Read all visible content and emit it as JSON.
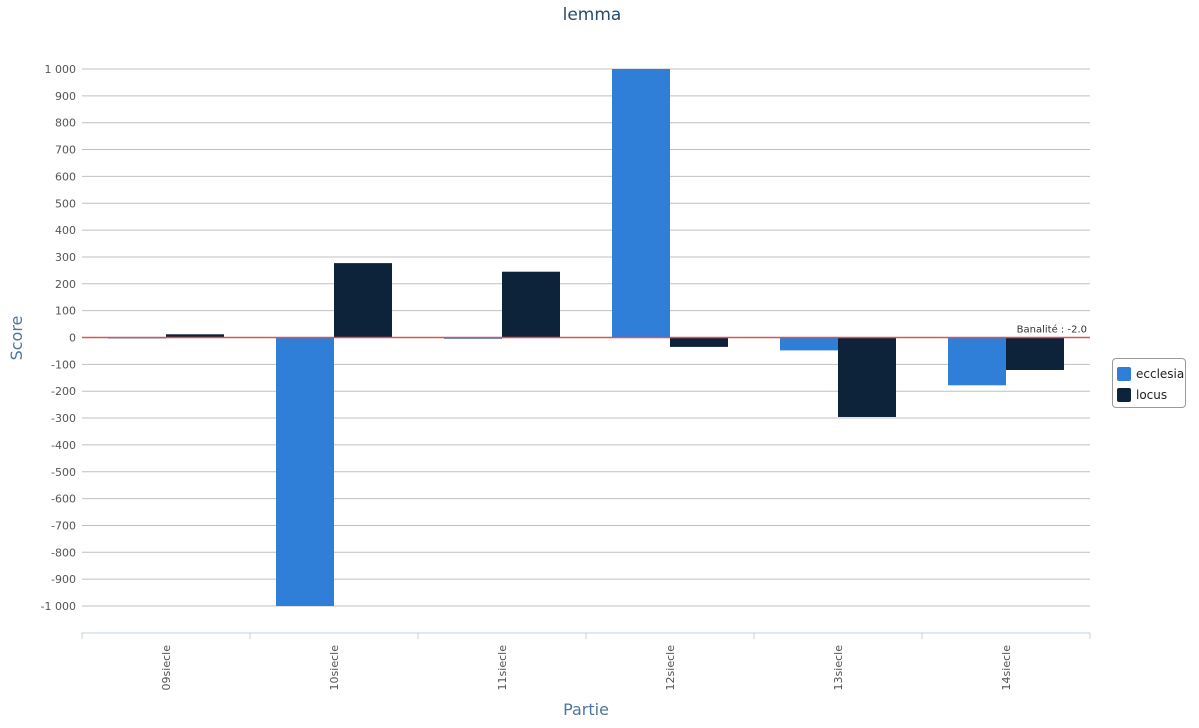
{
  "chart_data": {
    "type": "bar",
    "title": "lemma",
    "xlabel": "Partie",
    "ylabel": "Score",
    "categories": [
      "09siecle",
      "10siecle",
      "11siecle",
      "12siecle",
      "13siecle",
      "14siecle"
    ],
    "series": [
      {
        "name": "ecclesia",
        "color": "#2f7ed8",
        "values": [
          0,
          -1000,
          -5,
          1000,
          -48,
          -178
        ]
      },
      {
        "name": "locus",
        "color": "#0d233a",
        "values": [
          12,
          277,
          245,
          -35,
          -296,
          -121
        ]
      }
    ],
    "ylim": [
      -1000,
      1000
    ],
    "y_ticks": [
      1000,
      900,
      800,
      700,
      600,
      500,
      400,
      300,
      200,
      100,
      0,
      -100,
      -200,
      -300,
      -400,
      -500,
      -600,
      -700,
      -800,
      -900,
      -1000
    ],
    "y_tick_labels": [
      "1 000",
      "900",
      "800",
      "700",
      "600",
      "500",
      "400",
      "300",
      "200",
      "100",
      "0",
      "-100",
      "-200",
      "-300",
      "-400",
      "-500",
      "-600",
      "-700",
      "-800",
      "-900",
      "-1 000"
    ],
    "baseline_label": "Banalité : -2.0",
    "baseline_value": 0,
    "baseline_color": "#e05252",
    "grid": true,
    "legend_position": "right"
  }
}
